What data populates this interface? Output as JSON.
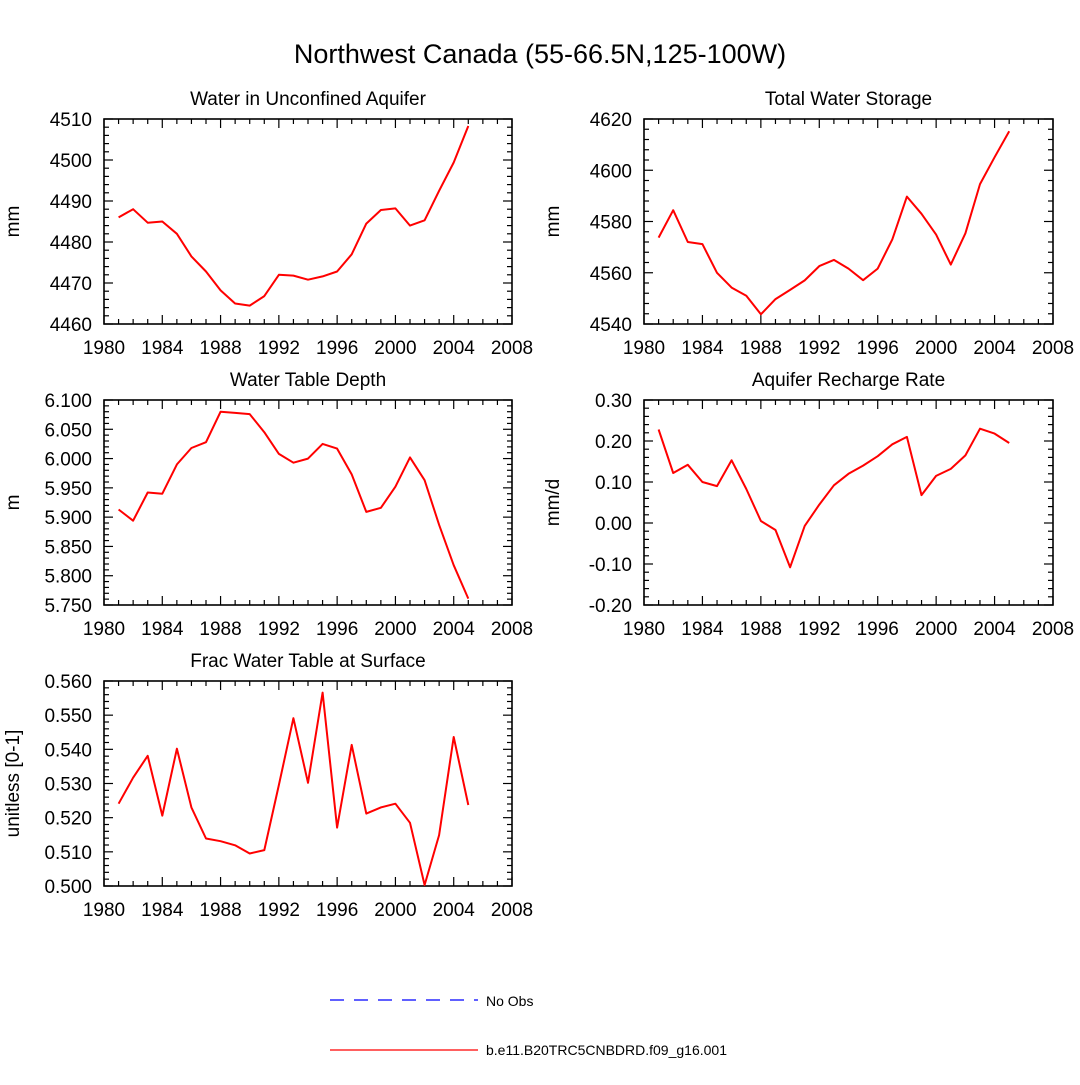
{
  "page_title": "Northwest Canada (55-66.5N,125-100W)",
  "colors": {
    "model_line": "#ff0000",
    "obs_line": "#0000ff",
    "axis": "#000000"
  },
  "legend": {
    "obs_label": "No Obs",
    "model_label": "b.e11.B20TRC5CNBDRD.f09_g16.001"
  },
  "chart_data": [
    {
      "type": "line",
      "title": "Water in Unconfined Aquifer",
      "ylabel": "mm",
      "xlabel": "",
      "xlim": [
        1980,
        2008
      ],
      "ylim": [
        4460,
        4510
      ],
      "x_ticks": [
        1980,
        1984,
        1988,
        1992,
        1996,
        2000,
        2004,
        2008
      ],
      "y_ticks": [
        4460,
        4470,
        4480,
        4490,
        4500,
        4510
      ],
      "y_tick_labels": [
        "4460",
        "4470",
        "4480",
        "4490",
        "4500",
        "4510"
      ],
      "series": [
        {
          "name": "b.e11.B20TRC5CNBDRD.f09_g16.001",
          "x": [
            1981,
            1982,
            1983,
            1984,
            1985,
            1986,
            1987,
            1988,
            1989,
            1990,
            1991,
            1992,
            1993,
            1994,
            1995,
            1996,
            1997,
            1998,
            1999,
            2000,
            2001,
            2002,
            2003,
            2004,
            2005
          ],
          "values": [
            4486,
            4488,
            4484.7,
            4485,
            4482,
            4476.5,
            4472.8,
            4468.2,
            4465,
            4464.5,
            4466.8,
            4472,
            4471.8,
            4470.8,
            4471.6,
            4472.8,
            4477,
            4484.5,
            4487.8,
            4488.2,
            4484,
            4485.3,
            4492.5,
            4499.4,
            4508.3
          ]
        }
      ]
    },
    {
      "type": "line",
      "title": "Total Water Storage",
      "ylabel": "mm",
      "xlabel": "",
      "xlim": [
        1980,
        2008
      ],
      "ylim": [
        4540,
        4620
      ],
      "x_ticks": [
        1980,
        1984,
        1988,
        1992,
        1996,
        2000,
        2004,
        2008
      ],
      "y_ticks": [
        4540,
        4560,
        4580,
        4600,
        4620
      ],
      "y_tick_labels": [
        "4540",
        "4560",
        "4580",
        "4600",
        "4620"
      ],
      "series": [
        {
          "name": "b.e11.B20TRC5CNBDRD.f09_g16.001",
          "x": [
            1981,
            1982,
            1983,
            1984,
            1985,
            1986,
            1987,
            1988,
            1989,
            1990,
            1991,
            1992,
            1993,
            1994,
            1995,
            1996,
            1997,
            1998,
            1999,
            2000,
            2001,
            2002,
            2003,
            2004,
            2005
          ],
          "values": [
            4573.7,
            4584.4,
            4572,
            4571.2,
            4560,
            4554.2,
            4551,
            4543.8,
            4549.7,
            4553.3,
            4557,
            4562.6,
            4565,
            4561.6,
            4557.1,
            4561.6,
            4573,
            4589.7,
            4583,
            4574.9,
            4563.2,
            4575.4,
            4594.6,
            4605.1,
            4615.2
          ]
        }
      ]
    },
    {
      "type": "line",
      "title": "Water Table Depth",
      "ylabel": "m",
      "xlabel": "",
      "xlim": [
        1980,
        2008
      ],
      "ylim": [
        5.75,
        6.1
      ],
      "x_ticks": [
        1980,
        1984,
        1988,
        1992,
        1996,
        2000,
        2004,
        2008
      ],
      "y_ticks": [
        5.75,
        5.8,
        5.85,
        5.9,
        5.95,
        6.0,
        6.05,
        6.1
      ],
      "y_tick_labels": [
        "5.750",
        "5.800",
        "5.850",
        "5.900",
        "5.950",
        "6.000",
        "6.050",
        "6.100"
      ],
      "series": [
        {
          "name": "b.e11.B20TRC5CNBDRD.f09_g16.001",
          "x": [
            1981,
            1982,
            1983,
            1984,
            1985,
            1986,
            1987,
            1988,
            1989,
            1990,
            1991,
            1992,
            1993,
            1994,
            1995,
            1996,
            1997,
            1998,
            1999,
            2000,
            2001,
            2002,
            2003,
            2004,
            2005
          ],
          "values": [
            5.913,
            5.894,
            5.942,
            5.94,
            5.99,
            6.018,
            6.028,
            6.08,
            6.078,
            6.076,
            6.045,
            6.008,
            5.993,
            6.0,
            6.025,
            6.017,
            5.973,
            5.909,
            5.916,
            5.952,
            6.002,
            5.963,
            5.887,
            5.818,
            5.761
          ]
        }
      ]
    },
    {
      "type": "line",
      "title": "Aquifer Recharge Rate",
      "ylabel": "mm/d",
      "xlabel": "",
      "xlim": [
        1980,
        2008
      ],
      "ylim": [
        -0.2,
        0.3
      ],
      "x_ticks": [
        1980,
        1984,
        1988,
        1992,
        1996,
        2000,
        2004,
        2008
      ],
      "y_ticks": [
        -0.2,
        -0.1,
        0.0,
        0.1,
        0.2,
        0.3
      ],
      "y_tick_labels": [
        "-0.20",
        "-0.10",
        "0.00",
        "0.10",
        "0.20",
        "0.30"
      ],
      "series": [
        {
          "name": "b.e11.B20TRC5CNBDRD.f09_g16.001",
          "x": [
            1981,
            1982,
            1983,
            1984,
            1985,
            1986,
            1987,
            1988,
            1989,
            1990,
            1991,
            1992,
            1993,
            1994,
            1995,
            1996,
            1997,
            1998,
            1999,
            2000,
            2001,
            2002,
            2003,
            2004,
            2005
          ],
          "values": [
            0.228,
            0.122,
            0.142,
            0.1,
            0.09,
            0.153,
            0.083,
            0.005,
            -0.017,
            -0.108,
            -0.007,
            0.045,
            0.092,
            0.12,
            0.14,
            0.163,
            0.192,
            0.21,
            0.068,
            0.115,
            0.132,
            0.165,
            0.23,
            0.218,
            0.195
          ]
        }
      ]
    },
    {
      "type": "line",
      "title": "Frac Water Table at Surface",
      "ylabel": "unitless [0-1]",
      "xlabel": "",
      "xlim": [
        1980,
        2008
      ],
      "ylim": [
        0.5,
        0.56
      ],
      "x_ticks": [
        1980,
        1984,
        1988,
        1992,
        1996,
        2000,
        2004,
        2008
      ],
      "y_ticks": [
        0.5,
        0.51,
        0.52,
        0.53,
        0.54,
        0.55,
        0.56
      ],
      "y_tick_labels": [
        "0.500",
        "0.510",
        "0.520",
        "0.530",
        "0.540",
        "0.550",
        "0.560"
      ],
      "series": [
        {
          "name": "b.e11.B20TRC5CNBDRD.f09_g16.001",
          "x": [
            1981,
            1982,
            1983,
            1984,
            1985,
            1986,
            1987,
            1988,
            1989,
            1990,
            1991,
            1992,
            1993,
            1994,
            1995,
            1996,
            1997,
            1998,
            1999,
            2000,
            2001,
            2002,
            2003,
            2004,
            2005
          ],
          "values": [
            0.5241,
            0.5317,
            0.5381,
            0.5206,
            0.5402,
            0.523,
            0.5139,
            0.5131,
            0.5119,
            0.5095,
            0.5105,
            0.5296,
            0.5491,
            0.5302,
            0.5566,
            0.5171,
            0.5413,
            0.5212,
            0.523,
            0.5241,
            0.5185,
            0.5003,
            0.5149,
            0.5436,
            0.5237
          ]
        }
      ]
    }
  ]
}
